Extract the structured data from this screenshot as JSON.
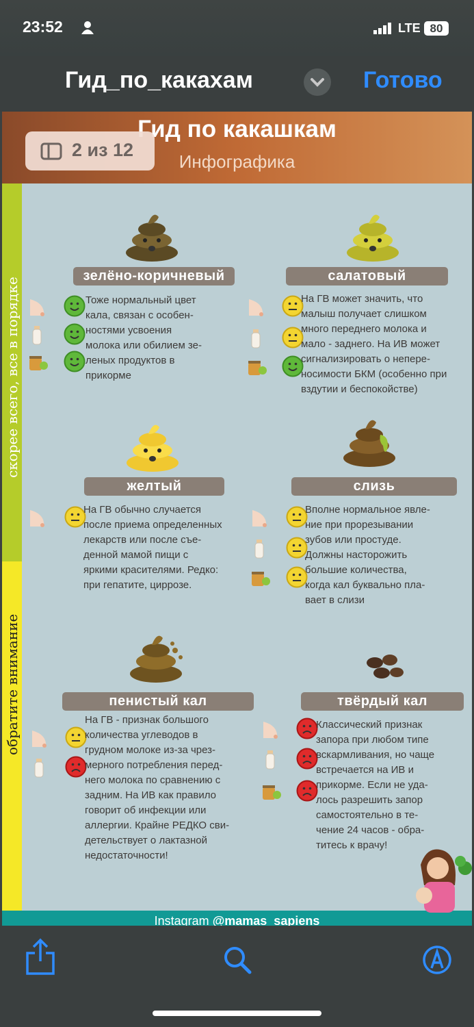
{
  "status_bar": {
    "time": "23:52",
    "network": "LTE",
    "battery": "80"
  },
  "nav": {
    "title": "Гид_по_какахам",
    "done": "Готово"
  },
  "page_indicator": "2 из 12",
  "infographic": {
    "title": "Гид по какашкам",
    "subtitle": "Инфографика",
    "side_labels": [
      "скорее всего, все в порядке",
      "обратите внимание"
    ],
    "items": [
      {
        "name": "зелёно-коричневый",
        "description": "Тоже нормальный цвет\nкала, связан с особен-\nностями усвоения\nмолока или обилием зе-\nленых продуктов в\nприкорме"
      },
      {
        "name": "салатовый",
        "description": "На ГВ может значить, что\nмалыш получает слишком\nмного переднего молока и\nмало - заднего. На ИВ может\nсигнализировать о непере-\nносимости БКМ (особенно при\nвздутии и беспокойстве)"
      },
      {
        "name": "желтый",
        "description": "На ГВ обычно случается\nпосле приема определенных\nлекарств или после съе-\nденной мамой пищи с\nяркими красителями. Редко:\nпри гепатите, циррозе."
      },
      {
        "name": "слизь",
        "description": "Вполне нормальное явле-\nние при прорезывании\nзубов или простуде.\nДолжны насторожить\nбольшие количества,\nкогда кал буквально пла-\nвает в слизи"
      },
      {
        "name": "пенистый кал",
        "description": "На ГВ - признак большого\nколичества углеводов в\nгрудном молоке из-за чрез-\nмерного потребления перед-\nнего молока по сравнению с\nзадним. На ИВ как правило\nговорит об инфекции или\nаллергии. Крайне РЕДКО сви-\nдетельствует о лактазной\nнедостаточности!"
      },
      {
        "name": "твёрдый кал",
        "description": "Классический признак\nзапора при любом типе\nвскармливания, но чаще\nвстречается на ИВ и\nприкорме. Если не уда-\nлось разрешить запор\nсамостоятельно в те-\nчение 24 часов - обра-\nтитесь к врачу!"
      }
    ],
    "footer": {
      "label": "Instagram",
      "handle": "@mamas_sapiens"
    }
  }
}
